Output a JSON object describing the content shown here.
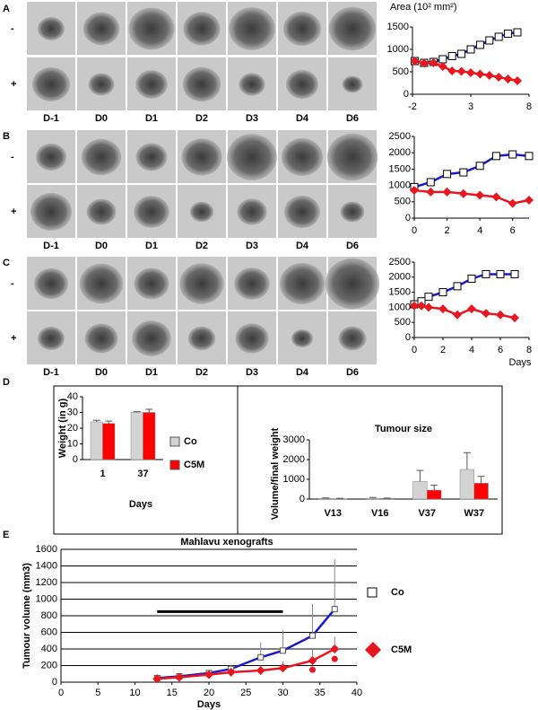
{
  "panel_labels": [
    "A",
    "B",
    "C",
    "D",
    "E"
  ],
  "row_signs": [
    "-",
    "+"
  ],
  "image_days": [
    "D-1",
    "D0",
    "D1",
    "D2",
    "D3",
    "D4",
    "D6"
  ],
  "chart_data": [
    {
      "type": "line",
      "ylabel": "Area (10² mm²)",
      "xlim": [
        -2,
        8
      ],
      "xticks": [
        -2,
        3,
        8
      ],
      "ylim": [
        0,
        1500
      ],
      "yticks": [
        0,
        500,
        1000,
        1500
      ],
      "series": [
        {
          "color": "#1a1acc",
          "marker": "square",
          "x": [
            -1.8,
            -1,
            -0.2,
            0.6,
            1.4,
            2.2,
            3,
            3.8,
            4.6,
            5.4,
            6.2,
            7
          ],
          "values": [
            740,
            700,
            720,
            780,
            850,
            900,
            1000,
            1100,
            1200,
            1280,
            1350,
            1380
          ]
        },
        {
          "color": "#e8171f",
          "marker": "diamond",
          "x": [
            -1.8,
            -1,
            -0.2,
            0.6,
            1.4,
            2.2,
            3,
            3.8,
            4.6,
            5.4,
            6.2,
            7
          ],
          "values": [
            740,
            690,
            700,
            620,
            520,
            510,
            480,
            450,
            420,
            380,
            340,
            300
          ]
        }
      ]
    },
    {
      "type": "line",
      "xlim": [
        0,
        7
      ],
      "xticks": [
        0,
        2,
        4,
        6
      ],
      "ylim": [
        0,
        2500
      ],
      "yticks": [
        0,
        500,
        1000,
        1500,
        2000,
        2500
      ],
      "series": [
        {
          "color": "#1a1acc",
          "marker": "square",
          "x": [
            0,
            1,
            2,
            3,
            4,
            5,
            6,
            7
          ],
          "values": [
            950,
            1100,
            1350,
            1400,
            1600,
            1900,
            1950,
            1900
          ]
        },
        {
          "color": "#e8171f",
          "marker": "diamond",
          "x": [
            0,
            1,
            2,
            3,
            4,
            5,
            6,
            7
          ],
          "values": [
            850,
            800,
            800,
            750,
            700,
            650,
            450,
            550
          ]
        }
      ]
    },
    {
      "type": "line",
      "xlabel": "Days",
      "xlim": [
        0,
        8
      ],
      "xticks": [
        0,
        2,
        4,
        6,
        8
      ],
      "ylim": [
        0,
        2500
      ],
      "yticks": [
        0,
        500,
        1000,
        1500,
        2000,
        2500
      ],
      "series": [
        {
          "color": "#1a1acc",
          "marker": "square",
          "x": [
            0,
            0.5,
            1,
            2,
            3,
            4,
            5,
            6,
            7
          ],
          "values": [
            1100,
            1200,
            1350,
            1500,
            1700,
            1950,
            2100,
            2100,
            2100
          ]
        },
        {
          "color": "#e8171f",
          "marker": "diamond",
          "x": [
            0,
            0.5,
            1,
            2,
            3,
            4,
            5,
            6,
            7
          ],
          "values": [
            1050,
            1050,
            1000,
            950,
            750,
            950,
            800,
            750,
            650
          ]
        }
      ]
    },
    {
      "type": "bar",
      "ylabel": "Weight (in g)",
      "xlabel": "Days",
      "categories": [
        "1",
        "37"
      ],
      "ylim": [
        0,
        40
      ],
      "yticks": [
        0,
        10,
        20,
        30,
        40
      ],
      "series": [
        {
          "name": "Co",
          "color": "#d3d3d3",
          "values": [
            24,
            30
          ],
          "errors": [
            1,
            0.5
          ]
        },
        {
          "name": "C5M",
          "color": "#ff0000",
          "values": [
            23,
            30
          ],
          "errors": [
            1.5,
            2
          ]
        }
      ]
    },
    {
      "type": "bar",
      "title": "Tumour size",
      "ylabel": "Volume/final weight",
      "categories": [
        "V13",
        "V16",
        "V37",
        "W37"
      ],
      "ylim": [
        0,
        3000
      ],
      "yticks": [
        0,
        1000,
        2000,
        3000
      ],
      "series": [
        {
          "color": "#d3d3d3",
          "values": [
            30,
            40,
            900,
            1500
          ],
          "errors": [
            30,
            40,
            550,
            850
          ]
        },
        {
          "color": "#ff0000",
          "values": [
            20,
            30,
            450,
            800
          ],
          "errors": [
            20,
            20,
            250,
            350
          ]
        }
      ]
    },
    {
      "type": "line",
      "title": "Mahlavu xenografts",
      "ylabel": "Tumour volume (mm3)",
      "xlabel": "Days",
      "xlim": [
        0,
        40
      ],
      "xticks": [
        0,
        5,
        10,
        15,
        20,
        25,
        30,
        35,
        40
      ],
      "ylim": [
        0,
        1600
      ],
      "yticks": [
        0,
        200,
        400,
        600,
        800,
        1000,
        1200,
        1400,
        1600
      ],
      "grid": true,
      "annotation_line": {
        "x": [
          13,
          30
        ],
        "y": 850
      },
      "series": [
        {
          "name": "Co",
          "color": "#1a1acc",
          "marker": "open-square",
          "x": [
            13,
            16,
            20,
            23,
            27,
            30,
            34,
            37
          ],
          "values": [
            50,
            70,
            110,
            160,
            300,
            380,
            560,
            880
          ],
          "errors": [
            10,
            15,
            30,
            50,
            180,
            250,
            380,
            600
          ]
        },
        {
          "name": "C5M",
          "color": "#e8171f",
          "marker": "diamond",
          "x": [
            13,
            16,
            20,
            23,
            27,
            30,
            34,
            37
          ],
          "values": [
            40,
            60,
            90,
            120,
            140,
            170,
            260,
            400
          ],
          "errors": [
            10,
            15,
            20,
            30,
            60,
            80,
            130,
            150
          ]
        },
        {
          "color": "#e8171f",
          "marker": "circle",
          "nolines": true,
          "x": [
            34,
            37
          ],
          "values": [
            150,
            280
          ]
        }
      ]
    }
  ]
}
